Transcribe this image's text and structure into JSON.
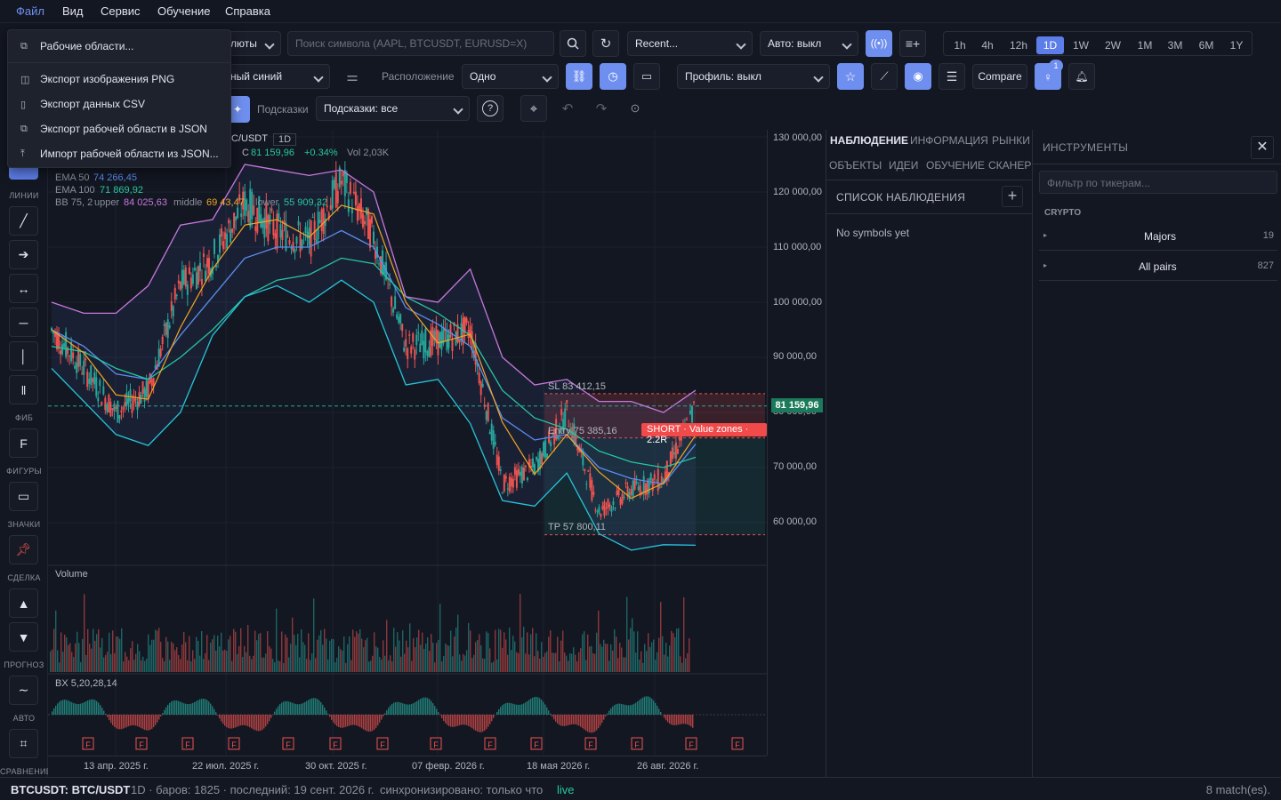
{
  "menu": [
    "Файл",
    "Вид",
    "Сервис",
    "Обучение",
    "Справка"
  ],
  "dropdown": {
    "items": [
      {
        "icon": "layers-icon",
        "glyph": "⧉",
        "label": "Рабочие области..."
      },
      {
        "icon": "camera-icon",
        "glyph": "◫",
        "label": "Экспорт изображения PNG"
      },
      {
        "icon": "file-icon",
        "glyph": "▯",
        "label": "Экспорт данных CSV"
      },
      {
        "icon": "layers-icon",
        "glyph": "⧉",
        "label": "Экспорт рабочей области в JSON"
      },
      {
        "icon": "upload-icon",
        "glyph": "⤒",
        "label": "Импорт рабочей области из JSON..."
      }
    ]
  },
  "toolbar": {
    "partial_select_1": "люты",
    "search_placeholder": "Поиск символа (AAPL, BTCUSDT, EURUSD=X)",
    "recent": "Recent...",
    "auto": "Авто: выкл",
    "timeframes": [
      "1h",
      "4h",
      "12h",
      "1D",
      "1W",
      "2W",
      "1M",
      "3M",
      "6M",
      "1Y"
    ],
    "active_timeframe": "1D",
    "partial_select_2": "ный синий",
    "layout_label": "Расположение",
    "layout_value": "Одно",
    "profile": "Профиль: выкл",
    "compare": "Compare",
    "bulb_badge": "1",
    "hints_label": "Подсказки",
    "hints_value": "Подсказки: все"
  },
  "legend": {
    "symbol_partial": "C/USDT",
    "interval": "1D",
    "close_label": "C",
    "close_value": "81 159,96",
    "change": "+0.34%",
    "vol": "Vol 2,03K",
    "ema50_label": "EMA 50",
    "ema50_value": "74 266,45",
    "ema100_label": "EMA 100",
    "ema100_value": "71 869,92",
    "bb_label": "BB 75, 2",
    "bb_upper_label": "upper",
    "bb_upper": "84 025,63",
    "bb_middle_label": "middle",
    "bb_middle": "69 43,47",
    "bb_lower_label": "lower",
    "bb_lower": "55 909,32"
  },
  "trade": {
    "sl": "SL 83 412,15",
    "entry": "Entry 75 385,16",
    "tp": "TP 57 800,11",
    "tag": "SHORT · Value zones · 2.2R"
  },
  "price_axis": [
    "130 000,00",
    "120 000,00",
    "110 000,00",
    "100 000,00",
    "90 000,00",
    "80 000,00",
    "70 000,00",
    "60 000,00"
  ],
  "last_price": "81 159,96",
  "time_axis": [
    "13 апр. 2025 г.",
    "22 июл. 2025 г.",
    "30 окт. 2025 г.",
    "07 февр. 2026 г.",
    "18 мая 2026 г.",
    "26 авг. 2026 г."
  ],
  "volume_label": "Volume",
  "bx_label": "BX 5,20,28,14",
  "left_tools": {
    "sections": [
      "ЛИНИИ",
      "ФИБ",
      "ФИГУРЫ",
      "ЗНАЧКИ",
      "СДЕЛКА",
      "ПРОГНОЗ",
      "АВТО",
      "СРАВНЕНИЕ"
    ],
    "fib_glyph": "F"
  },
  "watch_panel": {
    "tabs_row1": [
      "НАБЛЮДЕНИЕ",
      "ИНФОРМАЦИЯ",
      "РЫНКИ"
    ],
    "tabs_row2": [
      "ОБЪЕКТЫ",
      "ИДЕИ",
      "ОБУЧЕНИЕ",
      "СКАНЕР"
    ],
    "list_title": "СПИСОК НАБЛЮДЕНИЯ",
    "empty": "No symbols yet"
  },
  "instruments": {
    "title": "ИНСТРУМЕНТЫ",
    "filter_placeholder": "Фильтр по тикерам...",
    "group": "CRYPTO",
    "rows": [
      {
        "label": "Majors",
        "count": "19"
      },
      {
        "label": "All pairs",
        "count": "827"
      }
    ]
  },
  "status": {
    "symbol": "BTCUSDT: BTC/USDT",
    "info": "1D · баров: 1825 · последний: 19 сент. 2026 г.",
    "sync": "синхронизировано: только что",
    "live": "live",
    "matches": "8 match(es)."
  },
  "colors": {
    "accent": "#5d7ee8",
    "up": "#26a69a",
    "down": "#ef5350",
    "bb": "#c678dd",
    "ema_fast": "#f5a623",
    "ema_mid": "#5b8def",
    "ema_slow": "#26c6a0",
    "short_tag": "#f04a4a"
  },
  "chart_data": {
    "type": "line",
    "title": "",
    "xlabel": "",
    "ylabel": "",
    "ylim": [
      50000,
      131000
    ],
    "x": [
      "2025-01",
      "2025-02",
      "2025-03",
      "2025-04",
      "2025-05",
      "2025-06",
      "2025-07",
      "2025-08",
      "2025-09",
      "2025-10",
      "2025-11",
      "2025-12",
      "2026-01",
      "2026-02",
      "2026-03",
      "2026-04",
      "2026-05",
      "2026-06",
      "2026-07",
      "2026-08",
      "2026-09"
    ],
    "series": [
      {
        "name": "",
        "values": [
          95000,
          88000,
          80000,
          84000,
          103000,
          108000,
          118000,
          113000,
          111000,
          122000,
          112000,
          92000,
          93000,
          95000,
          67000,
          70000,
          80000,
          62000,
          66000,
          68000,
          81160
        ]
      },
      {
        "name": "EMA 50",
        "values": [
          95000,
          92000,
          87000,
          86000,
          94000,
          101000,
          108000,
          110000,
          110000,
          113000,
          110000,
          99000,
          96000,
          92000,
          79000,
          75000,
          76000,
          70000,
          68000,
          67000,
          74266
        ]
      },
      {
        "name": "EMA 100",
        "values": [
          92000,
          91000,
          88000,
          86000,
          90000,
          95000,
          101000,
          104000,
          105000,
          108000,
          107000,
          101000,
          98000,
          94000,
          84000,
          79000,
          77000,
          73000,
          71000,
          70000,
          71870
        ]
      },
      {
        "name": "BB upper",
        "values": [
          100000,
          98000,
          98000,
          103000,
          114000,
          115000,
          125000,
          124000,
          123000,
          124000,
          120000,
          101000,
          100000,
          106000,
          90000,
          85000,
          86000,
          82000,
          82000,
          80000,
          84026
        ]
      },
      {
        "name": "BB lower",
        "values": [
          88000,
          82000,
          76000,
          74000,
          80000,
          94000,
          101000,
          103000,
          100000,
          104000,
          100000,
          85000,
          86000,
          78000,
          64000,
          63000,
          69000,
          58000,
          55000,
          56000,
          55909
        ]
      }
    ],
    "volume_note": "",
    "annotations": [
      "SL 83 412,15",
      "Entry 75 385,16",
      "TP 57 800,11",
      "SHORT · Value zones · 2.2R"
    ]
  }
}
